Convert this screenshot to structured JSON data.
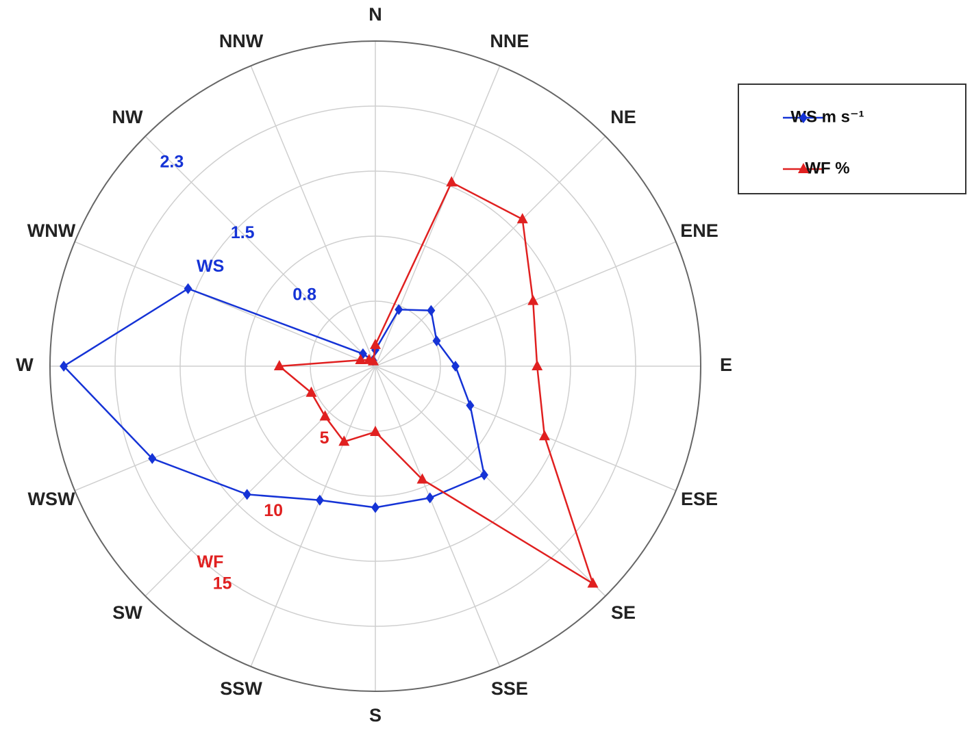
{
  "chart_data": {
    "type": "radar",
    "categories": [
      "N",
      "NNE",
      "NE",
      "ENE",
      "E",
      "ESE",
      "SE",
      "SSE",
      "S",
      "SSW",
      "SW",
      "WSW",
      "W",
      "WNW",
      "NW",
      "NNW"
    ],
    "series": [
      {
        "name": "WS m s⁻¹",
        "color": "#1533d6",
        "marker": "diamond",
        "axis": "r",
        "values": [
          0.13,
          0.49,
          0.63,
          0.53,
          0.64,
          0.82,
          1.23,
          1.14,
          1.13,
          1.16,
          1.45,
          1.93,
          2.49,
          1.62,
          0.14,
          0.05
        ]
      },
      {
        "name": "WF %",
        "color": "#e02020",
        "marker": "triangle",
        "axis": "r2",
        "values": [
          1.2,
          11.2,
          11.7,
          9.6,
          9.1,
          10.3,
          17.3,
          6.9,
          3.7,
          4.6,
          4.0,
          3.9,
          5.4,
          0.9,
          0.5,
          0.3
        ]
      }
    ],
    "rlim": [
      0,
      2.6
    ],
    "rticks": [
      0.8,
      1.5,
      2.3
    ],
    "r_label": "WS",
    "r2lim": [
      0,
      18.3
    ],
    "r2ticks": [
      5,
      10,
      15
    ],
    "r2_label": "WF",
    "legend": "upper right"
  }
}
